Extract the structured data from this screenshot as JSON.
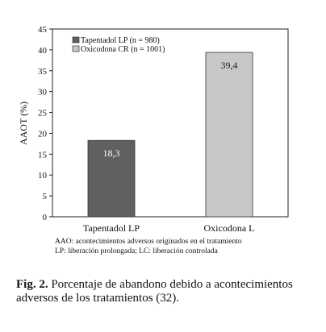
{
  "chart_data": {
    "type": "bar",
    "categories": [
      "Tapentadol LP",
      "Oxicodona L"
    ],
    "values": [
      18.3,
      39.4
    ],
    "data_labels": [
      "18,3",
      "39,4"
    ],
    "ylabel": "AAOT (%)",
    "ylim": [
      0,
      45
    ],
    "yticks": [
      0,
      5,
      10,
      15,
      20,
      25,
      30,
      35,
      40,
      45
    ],
    "legend": [
      {
        "label": "Tapentadol LP (n = 980)",
        "color": "#606060"
      },
      {
        "label": "Oxicodona CR (n = 1001)",
        "color": "#c8c8c8"
      }
    ],
    "legend_position": "top-left",
    "bar_colors": [
      "#606060",
      "#c8c8c8"
    ],
    "label_colors": [
      "#ffffff",
      "#222222"
    ],
    "grid": false
  },
  "notes": {
    "line1": "AAO: acontecimientos adversos originados en el tratamiento",
    "line2": "LP: liberación prolongada; LC: liberación controlada"
  },
  "caption": {
    "lead": "Fig. 2.",
    "text": " Porcentaje de abandono debido a acontecimientos adversos de los tratamientos (32)."
  }
}
